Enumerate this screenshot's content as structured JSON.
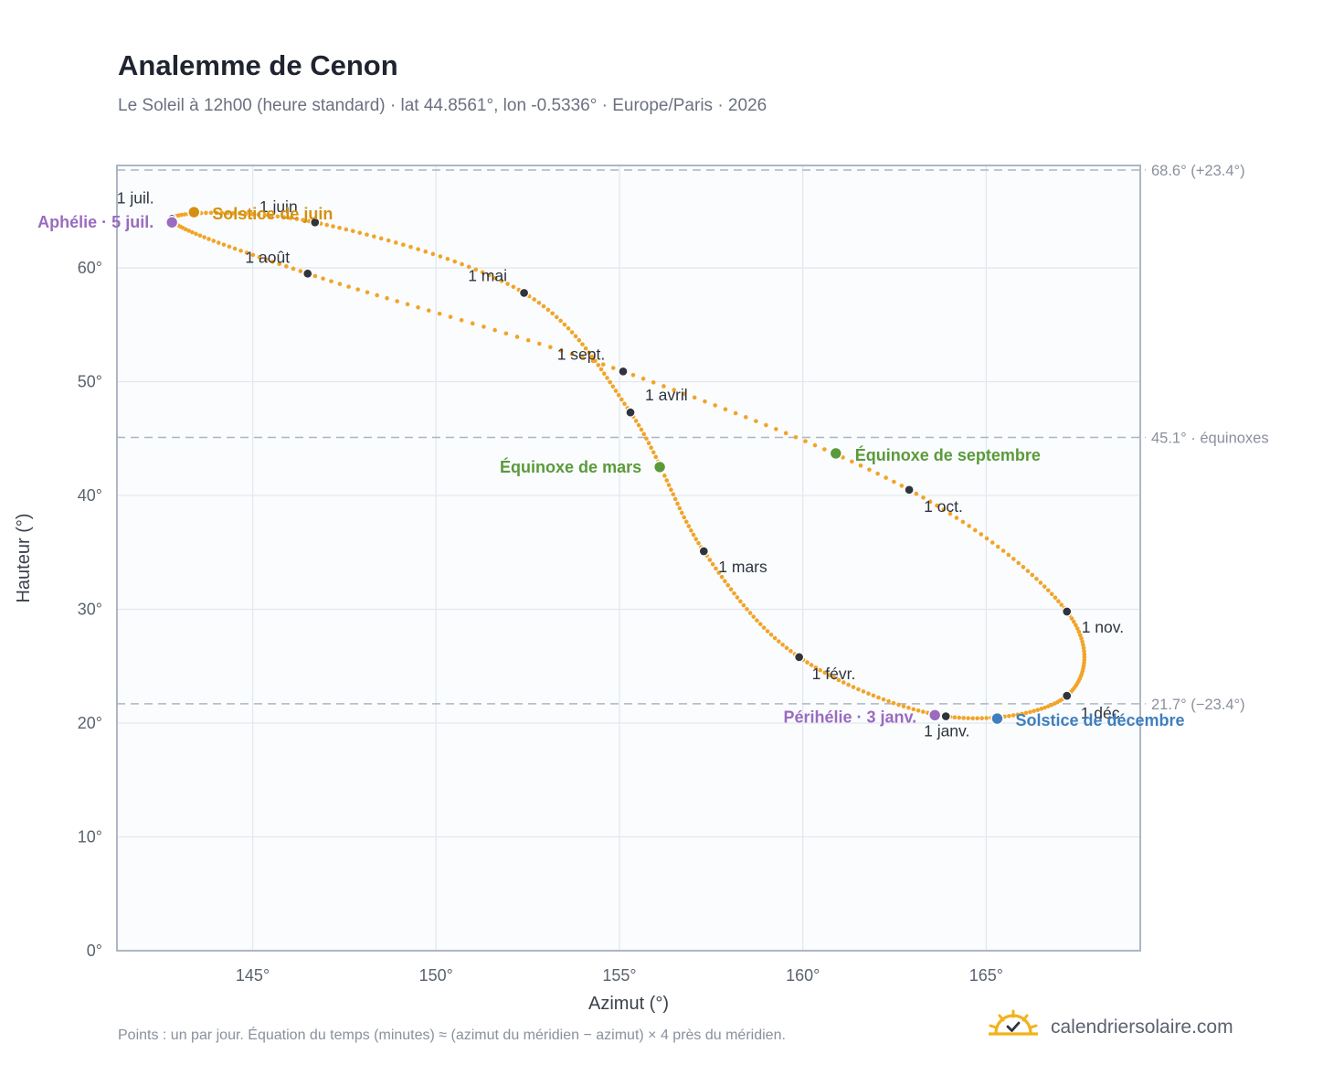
{
  "title": "Analemme de Cenon",
  "subtitle": "Le Soleil à 12h00 (heure standard) · lat 44.8561°, lon -0.5336° · Europe/Paris · 2026",
  "footnote": "Points : un par jour. Équation du temps (minutes) ≈ (azimut du méridien − azimut) × 4 près du méridien.",
  "brand": {
    "name": "calendriersolaire.com",
    "icon": "sun-logo-icon",
    "color": "#f2b21b"
  },
  "colors": {
    "curve": "#f2a428",
    "month_marker": "#2f343d",
    "solstice_june": "#d4900f",
    "solstice_december": "#3f7fbe",
    "equinox": "#5a9a3a",
    "apsis": "#9a6bbf",
    "reference_line": "#aab6c7"
  },
  "chart_data": {
    "type": "scatter",
    "xlabel": "Azimut (°)",
    "ylabel": "Hauteur (°)",
    "xlim": [
      141.3,
      169.2
    ],
    "ylim": [
      0,
      69
    ],
    "x_ticks": [
      145,
      150,
      155,
      160,
      165
    ],
    "x_tick_labels": [
      "145°",
      "150°",
      "155°",
      "160°",
      "165°"
    ],
    "y_ticks": [
      0,
      10,
      20,
      30,
      40,
      50,
      60
    ],
    "y_tick_labels": [
      "0°",
      "10°",
      "20°",
      "30°",
      "40°",
      "50°",
      "60°"
    ],
    "grid": true,
    "reference_lines": [
      {
        "altitude": 68.6,
        "label": "68.6° (+23.4°)"
      },
      {
        "altitude": 45.1,
        "label": "45.1° · équinoxes"
      },
      {
        "altitude": 21.7,
        "label": "21.7° (−23.4°)"
      }
    ],
    "month_starts": [
      {
        "label": "1 janv.",
        "azimuth": 163.9,
        "altitude": 20.6
      },
      {
        "label": "1 févr.",
        "azimuth": 159.9,
        "altitude": 25.8
      },
      {
        "label": "1 mars",
        "azimuth": 157.3,
        "altitude": 35.1
      },
      {
        "label": "1 avril",
        "azimuth": 155.3,
        "altitude": 47.3
      },
      {
        "label": "1 mai",
        "azimuth": 152.4,
        "altitude": 57.8
      },
      {
        "label": "1 juin",
        "azimuth": 146.7,
        "altitude": 64.0
      },
      {
        "label": "1 juil.",
        "azimuth": 142.8,
        "altitude": 64.3
      },
      {
        "label": "1 août",
        "azimuth": 146.5,
        "altitude": 59.5
      },
      {
        "label": "1 sept.",
        "azimuth": 155.1,
        "altitude": 50.9
      },
      {
        "label": "1 oct.",
        "azimuth": 162.9,
        "altitude": 40.5
      },
      {
        "label": "1 nov.",
        "azimuth": 167.2,
        "altitude": 29.8
      },
      {
        "label": "1 déc.",
        "azimuth": 167.2,
        "altitude": 22.4
      }
    ],
    "events": [
      {
        "label": "Solstice de juin",
        "azimuth": 143.4,
        "altitude": 64.9,
        "kind": "solstice_june"
      },
      {
        "label": "Aphélie · 5 juil.",
        "azimuth": 142.8,
        "altitude": 64.0,
        "kind": "apsis"
      },
      {
        "label": "Équinoxe de mars",
        "azimuth": 156.1,
        "altitude": 42.5,
        "kind": "equinox"
      },
      {
        "label": "Équinoxe de septembre",
        "azimuth": 160.9,
        "altitude": 43.7,
        "kind": "equinox"
      },
      {
        "label": "Périhélie · 3 janv.",
        "azimuth": 163.6,
        "altitude": 20.7,
        "kind": "apsis"
      },
      {
        "label": "Solstice de décembre",
        "azimuth": 165.3,
        "altitude": 20.4,
        "kind": "solstice_december"
      }
    ]
  }
}
